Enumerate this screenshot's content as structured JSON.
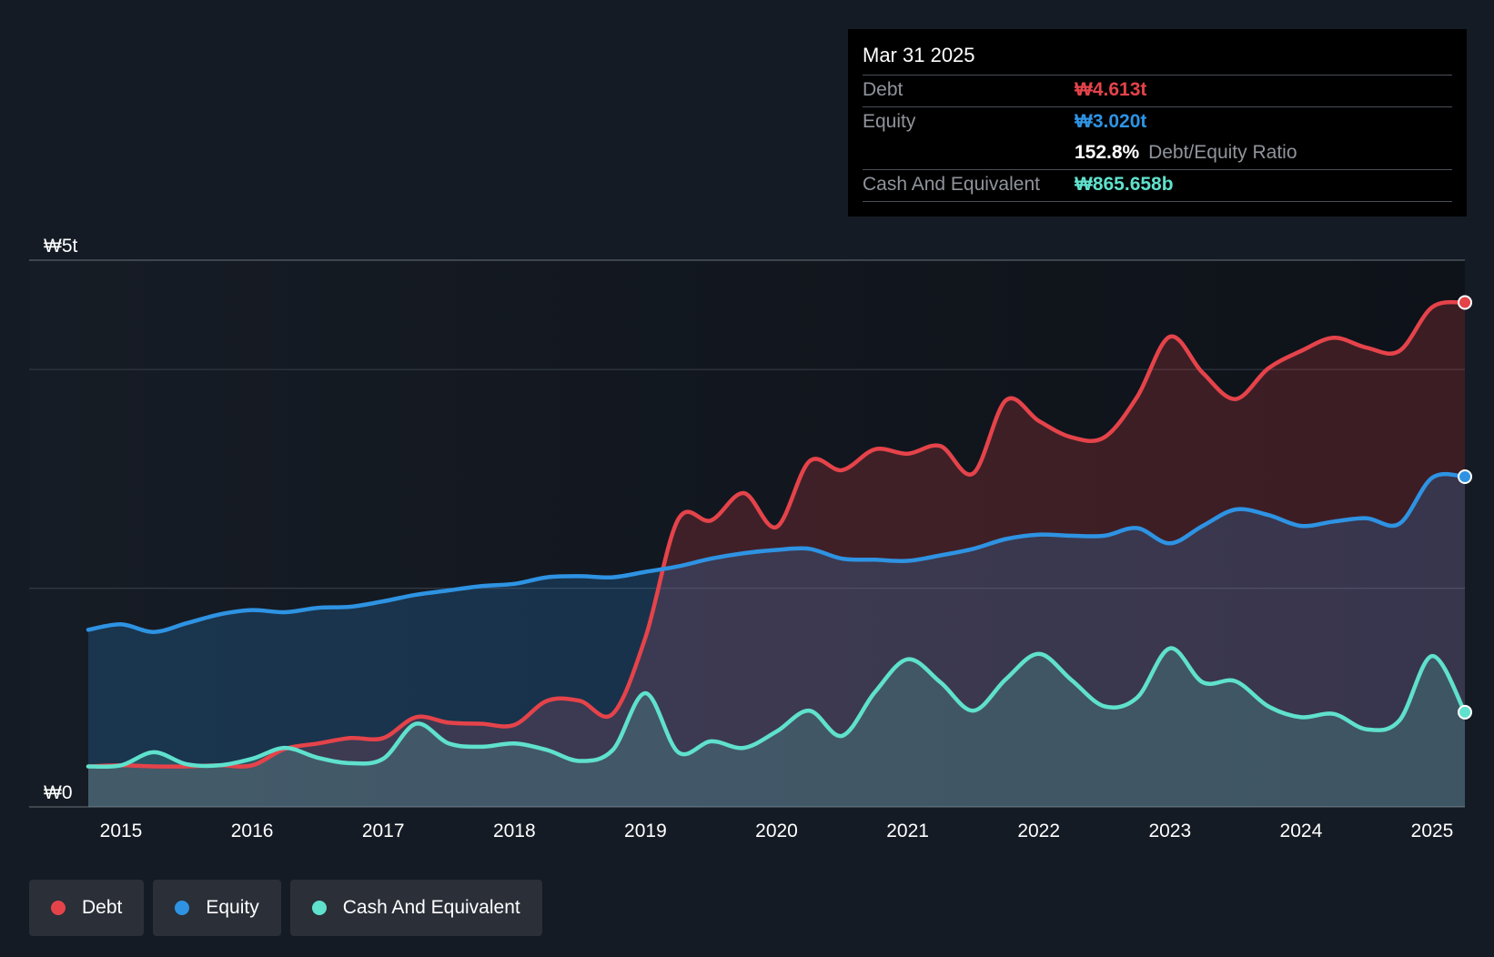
{
  "chart_data": {
    "type": "area",
    "title": "",
    "ylabel": "",
    "y_unit": "trillion KRW",
    "ylim": [
      0,
      5
    ],
    "y_tick_labels": [
      {
        "value": 5,
        "label": "₩5t"
      },
      {
        "value": 0,
        "label": "₩0"
      }
    ],
    "gridlines": [
      5,
      4,
      2
    ],
    "xlim": [
      2014.72,
      2025.25
    ],
    "x_ticks": [
      {
        "value": 2015,
        "label": "2015"
      },
      {
        "value": 2016,
        "label": "2016"
      },
      {
        "value": 2017,
        "label": "2017"
      },
      {
        "value": 2018,
        "label": "2018"
      },
      {
        "value": 2019,
        "label": "2019"
      },
      {
        "value": 2020,
        "label": "2020"
      },
      {
        "value": 2021,
        "label": "2021"
      },
      {
        "value": 2022,
        "label": "2022"
      },
      {
        "value": 2023,
        "label": "2023"
      },
      {
        "value": 2024,
        "label": "2024"
      },
      {
        "value": 2025,
        "label": "2025"
      }
    ],
    "series": [
      {
        "name": "Debt",
        "color": "#e5434a",
        "points": [
          [
            2014.75,
            0.37
          ],
          [
            2015.0,
            0.38
          ],
          [
            2015.25,
            0.37
          ],
          [
            2015.5,
            0.37
          ],
          [
            2015.75,
            0.38
          ],
          [
            2016.0,
            0.38
          ],
          [
            2016.25,
            0.53
          ],
          [
            2016.5,
            0.58
          ],
          [
            2016.75,
            0.63
          ],
          [
            2017.0,
            0.63
          ],
          [
            2017.25,
            0.82
          ],
          [
            2017.5,
            0.77
          ],
          [
            2017.75,
            0.76
          ],
          [
            2018.0,
            0.75
          ],
          [
            2018.25,
            0.97
          ],
          [
            2018.5,
            0.97
          ],
          [
            2018.75,
            0.85
          ],
          [
            2019.0,
            1.55
          ],
          [
            2019.25,
            2.63
          ],
          [
            2019.5,
            2.62
          ],
          [
            2019.75,
            2.87
          ],
          [
            2020.0,
            2.56
          ],
          [
            2020.25,
            3.16
          ],
          [
            2020.5,
            3.08
          ],
          [
            2020.75,
            3.27
          ],
          [
            2021.0,
            3.23
          ],
          [
            2021.25,
            3.3
          ],
          [
            2021.5,
            3.05
          ],
          [
            2021.75,
            3.72
          ],
          [
            2022.0,
            3.53
          ],
          [
            2022.25,
            3.38
          ],
          [
            2022.5,
            3.38
          ],
          [
            2022.75,
            3.75
          ],
          [
            2023.0,
            4.3
          ],
          [
            2023.25,
            3.97
          ],
          [
            2023.5,
            3.73
          ],
          [
            2023.75,
            4.01
          ],
          [
            2024.0,
            4.17
          ],
          [
            2024.25,
            4.29
          ],
          [
            2024.5,
            4.2
          ],
          [
            2024.75,
            4.17
          ],
          [
            2025.0,
            4.57
          ],
          [
            2025.25,
            4.613
          ]
        ]
      },
      {
        "name": "Equity",
        "color": "#2e93e3",
        "points": [
          [
            2014.75,
            1.62
          ],
          [
            2015.0,
            1.67
          ],
          [
            2015.25,
            1.6
          ],
          [
            2015.5,
            1.68
          ],
          [
            2015.75,
            1.76
          ],
          [
            2016.0,
            1.8
          ],
          [
            2016.25,
            1.78
          ],
          [
            2016.5,
            1.82
          ],
          [
            2016.75,
            1.83
          ],
          [
            2017.0,
            1.88
          ],
          [
            2017.25,
            1.94
          ],
          [
            2017.5,
            1.98
          ],
          [
            2017.75,
            2.02
          ],
          [
            2018.0,
            2.04
          ],
          [
            2018.25,
            2.1
          ],
          [
            2018.5,
            2.11
          ],
          [
            2018.75,
            2.1
          ],
          [
            2019.0,
            2.15
          ],
          [
            2019.25,
            2.2
          ],
          [
            2019.5,
            2.27
          ],
          [
            2019.75,
            2.32
          ],
          [
            2020.0,
            2.35
          ],
          [
            2020.25,
            2.36
          ],
          [
            2020.5,
            2.27
          ],
          [
            2020.75,
            2.26
          ],
          [
            2021.0,
            2.25
          ],
          [
            2021.25,
            2.3
          ],
          [
            2021.5,
            2.36
          ],
          [
            2021.75,
            2.45
          ],
          [
            2022.0,
            2.49
          ],
          [
            2022.25,
            2.48
          ],
          [
            2022.5,
            2.48
          ],
          [
            2022.75,
            2.55
          ],
          [
            2023.0,
            2.41
          ],
          [
            2023.25,
            2.57
          ],
          [
            2023.5,
            2.72
          ],
          [
            2023.75,
            2.67
          ],
          [
            2024.0,
            2.57
          ],
          [
            2024.25,
            2.61
          ],
          [
            2024.5,
            2.64
          ],
          [
            2024.75,
            2.59
          ],
          [
            2025.0,
            3.01
          ],
          [
            2025.25,
            3.02
          ]
        ]
      },
      {
        "name": "Cash And Equivalent",
        "color": "#5fe1cd",
        "points": [
          [
            2014.75,
            0.37
          ],
          [
            2015.0,
            0.38
          ],
          [
            2015.25,
            0.5
          ],
          [
            2015.5,
            0.39
          ],
          [
            2015.75,
            0.38
          ],
          [
            2016.0,
            0.44
          ],
          [
            2016.25,
            0.54
          ],
          [
            2016.5,
            0.45
          ],
          [
            2016.75,
            0.4
          ],
          [
            2017.0,
            0.44
          ],
          [
            2017.25,
            0.76
          ],
          [
            2017.5,
            0.58
          ],
          [
            2017.75,
            0.55
          ],
          [
            2018.0,
            0.58
          ],
          [
            2018.25,
            0.52
          ],
          [
            2018.5,
            0.42
          ],
          [
            2018.75,
            0.52
          ],
          [
            2019.0,
            1.04
          ],
          [
            2019.25,
            0.5
          ],
          [
            2019.5,
            0.6
          ],
          [
            2019.75,
            0.54
          ],
          [
            2020.0,
            0.69
          ],
          [
            2020.25,
            0.88
          ],
          [
            2020.5,
            0.65
          ],
          [
            2020.75,
            1.05
          ],
          [
            2021.0,
            1.35
          ],
          [
            2021.25,
            1.14
          ],
          [
            2021.5,
            0.88
          ],
          [
            2021.75,
            1.17
          ],
          [
            2022.0,
            1.4
          ],
          [
            2022.25,
            1.16
          ],
          [
            2022.5,
            0.92
          ],
          [
            2022.75,
            1.0
          ],
          [
            2023.0,
            1.45
          ],
          [
            2023.25,
            1.14
          ],
          [
            2023.5,
            1.15
          ],
          [
            2023.75,
            0.92
          ],
          [
            2024.0,
            0.82
          ],
          [
            2024.25,
            0.85
          ],
          [
            2024.5,
            0.71
          ],
          [
            2024.75,
            0.79
          ],
          [
            2025.0,
            1.38
          ],
          [
            2025.25,
            0.866
          ]
        ]
      }
    ],
    "tooltip": {
      "date": "Mar 31 2025",
      "rows": [
        {
          "label": "Debt",
          "value": "₩4.613t",
          "color": "#e5434a"
        },
        {
          "label": "Equity",
          "value": "₩3.020t",
          "color": "#2e93e3"
        },
        {
          "ratio_value": "152.8%",
          "ratio_label": "Debt/Equity Ratio"
        },
        {
          "label": "Cash And Equivalent",
          "value": "₩865.658b",
          "color": "#5fe1cd"
        }
      ]
    },
    "legend": [
      {
        "label": "Debt",
        "color": "#e5434a"
      },
      {
        "label": "Equity",
        "color": "#2e93e3"
      },
      {
        "label": "Cash And Equivalent",
        "color": "#5fe1cd"
      }
    ]
  }
}
